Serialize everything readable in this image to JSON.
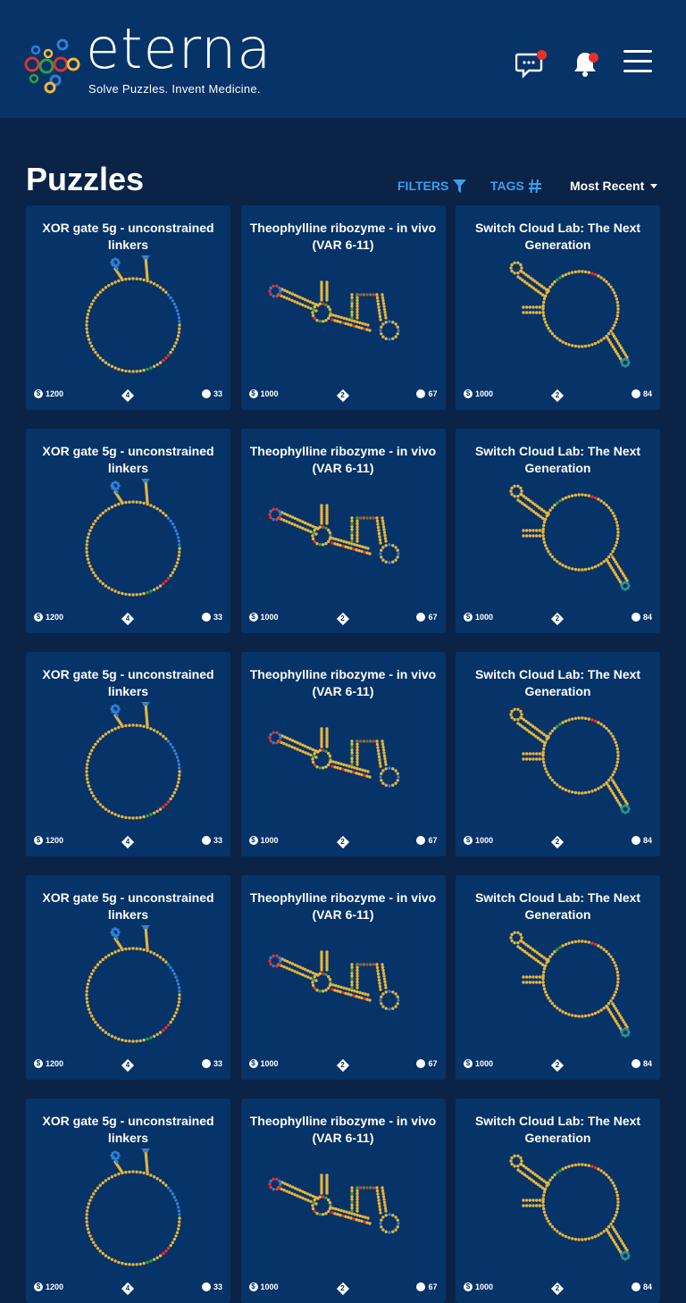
{
  "header": {
    "logo_text": "eterna",
    "tagline": "Solve Puzzles. Invent Medicine."
  },
  "toolbar": {
    "title": "Puzzles",
    "filters_label": "FILTERS",
    "tags_label": "TAGS",
    "sort_label": "Most Recent"
  },
  "colors": {
    "header_bg": "#063368",
    "page_bg": "#0a2347",
    "card_bg": "#063368",
    "accent": "#3aa0ec",
    "notification": "#e8302b"
  },
  "icons": {
    "chat": "chat-bubble-icon",
    "bell": "bell-icon",
    "menu": "hamburger-menu-icon",
    "filter": "funnel-icon",
    "tags": "hash-icon",
    "reward": "coin-icon",
    "difficulty": "diamond-icon",
    "players": "players-icon"
  },
  "puzzles": [
    {
      "title": "XOR gate 5g - unconstrained linkers",
      "reward": "1200",
      "difficulty": "4",
      "players": "33",
      "shape": "xor"
    },
    {
      "title": "Theophylline ribozyme - in vivo (VAR 6-11)",
      "reward": "1000",
      "difficulty": "2",
      "players": "67",
      "shape": "theo"
    },
    {
      "title": "Switch Cloud Lab: The Next Generation",
      "reward": "1000",
      "difficulty": "2",
      "players": "84",
      "shape": "switch"
    },
    {
      "title": "XOR gate 5g - unconstrained linkers",
      "reward": "1200",
      "difficulty": "4",
      "players": "33",
      "shape": "xor"
    },
    {
      "title": "Theophylline ribozyme - in vivo (VAR 6-11)",
      "reward": "1000",
      "difficulty": "2",
      "players": "67",
      "shape": "theo"
    },
    {
      "title": "Switch Cloud Lab: The Next Generation",
      "reward": "1000",
      "difficulty": "2",
      "players": "84",
      "shape": "switch"
    },
    {
      "title": "XOR gate 5g - unconstrained linkers",
      "reward": "1200",
      "difficulty": "4",
      "players": "33",
      "shape": "xor"
    },
    {
      "title": "Theophylline ribozyme - in vivo (VAR 6-11)",
      "reward": "1000",
      "difficulty": "2",
      "players": "67",
      "shape": "theo"
    },
    {
      "title": "Switch Cloud Lab: The Next Generation",
      "reward": "1000",
      "difficulty": "2",
      "players": "84",
      "shape": "switch"
    },
    {
      "title": "XOR gate 5g - unconstrained linkers",
      "reward": "1200",
      "difficulty": "4",
      "players": "33",
      "shape": "xor"
    },
    {
      "title": "Theophylline ribozyme - in vivo (VAR 6-11)",
      "reward": "1000",
      "difficulty": "2",
      "players": "67",
      "shape": "theo"
    },
    {
      "title": "Switch Cloud Lab: The Next Generation",
      "reward": "1000",
      "difficulty": "2",
      "players": "84",
      "shape": "switch"
    },
    {
      "title": "XOR gate 5g - unconstrained linkers",
      "reward": "1200",
      "difficulty": "4",
      "players": "33",
      "shape": "xor"
    },
    {
      "title": "Theophylline ribozyme - in vivo (VAR 6-11)",
      "reward": "1000",
      "difficulty": "2",
      "players": "67",
      "shape": "theo"
    },
    {
      "title": "Switch Cloud Lab: The Next Generation",
      "reward": "1000",
      "difficulty": "2",
      "players": "84",
      "shape": "switch"
    }
  ]
}
